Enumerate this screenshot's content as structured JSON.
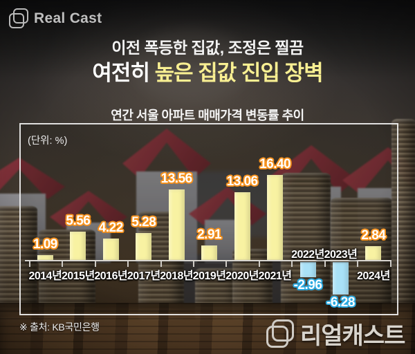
{
  "brand": {
    "logo_text": "Real Cast",
    "logo_icon": "overlapping-squares-icon",
    "footer_logo_text": "리얼캐스트"
  },
  "header": {
    "subtitle": "이전 폭등한 집값, 조정은 찔끔",
    "title_prefix": "여전히 ",
    "title_highlight": "높은 집값 진입 장벽",
    "title_highlight_color": "#f8ef92"
  },
  "chart": {
    "title": "연간 서울 아파트 매매가격 변동률 추이",
    "unit_label": "(단위: %)"
  },
  "chart_data": {
    "type": "bar",
    "title": "연간 서울 아파트 매매가격 변동률 추이",
    "unit": "%",
    "categories": [
      "2014년",
      "2015년",
      "2016년",
      "2017년",
      "2018년",
      "2019년",
      "2020년",
      "2021년",
      "2022년",
      "2023년",
      "2024년"
    ],
    "values": [
      1.09,
      5.56,
      4.22,
      5.28,
      13.56,
      2.91,
      13.06,
      16.4,
      -2.96,
      -6.28,
      2.84
    ],
    "value_labels": [
      "1.09",
      "5.56",
      "4.22",
      "5.28",
      "13.56",
      "2.91",
      "13.06",
      "16.40",
      "-2.96",
      "-6.28",
      "2.84"
    ],
    "ylim": [
      -8,
      18
    ],
    "grid": false,
    "legend": false,
    "positive_bar_color": "#f8f2a2",
    "negative_bar_color": "#a9e1f7",
    "positive_label_outline": "#f6921e",
    "negative_label_outline": "#2aa9e0"
  },
  "footer": {
    "source": "※ 출처: KB국민은행"
  }
}
